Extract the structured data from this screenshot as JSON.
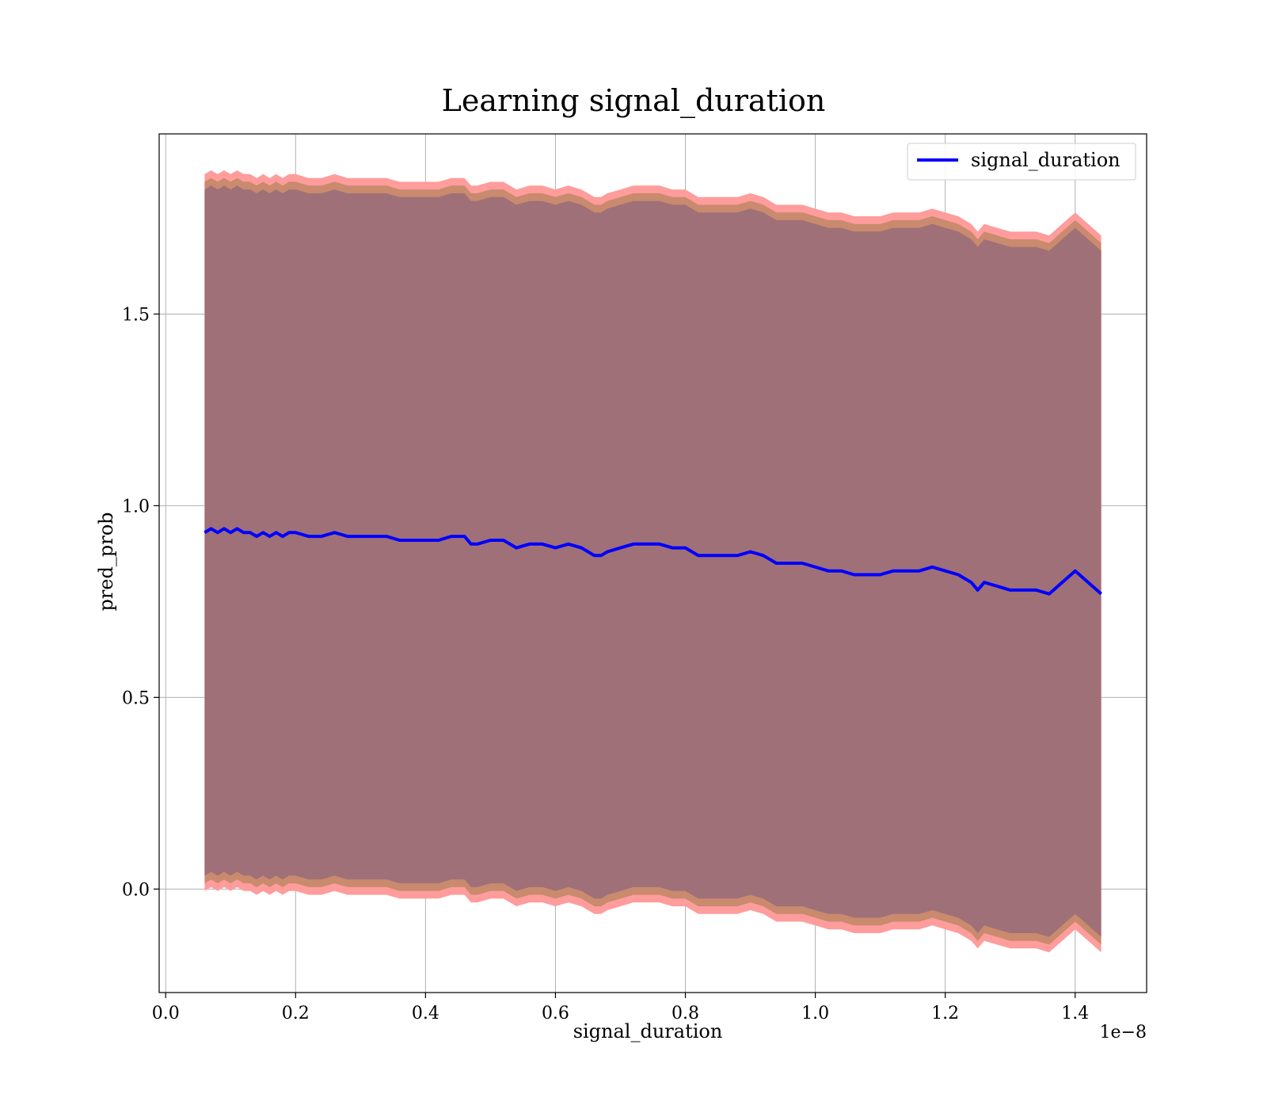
{
  "chart_data": {
    "type": "line",
    "title": "Learning signal_duration",
    "xlabel": "signal_duration",
    "ylabel": "pred_prob",
    "x_offset_text": "1e−8",
    "xlim": [
      -0.01,
      1.51
    ],
    "ylim": [
      -0.27,
      1.97
    ],
    "x_ticks": [
      0.0,
      0.2,
      0.4,
      0.6,
      0.8,
      1.0,
      1.2,
      1.4
    ],
    "x_tick_labels": [
      "0.0",
      "0.2",
      "0.4",
      "0.6",
      "0.8",
      "1.0",
      "1.2",
      "1.4"
    ],
    "y_ticks": [
      0.0,
      0.5,
      1.0,
      1.5
    ],
    "y_tick_labels": [
      "0.0",
      "0.5",
      "1.0",
      "1.5"
    ],
    "grid": true,
    "legend": {
      "position": "top-right",
      "entries": [
        "signal_duration"
      ]
    },
    "colors": {
      "line": "#0000ff",
      "band_outer": "#ff9c9c",
      "band_mid": "#c98a6e",
      "band_inner": "#a07078"
    },
    "series": [
      {
        "name": "signal_duration",
        "x": [
          0.06,
          0.07,
          0.08,
          0.09,
          0.1,
          0.11,
          0.12,
          0.13,
          0.14,
          0.15,
          0.16,
          0.17,
          0.18,
          0.19,
          0.2,
          0.22,
          0.24,
          0.26,
          0.28,
          0.3,
          0.32,
          0.34,
          0.36,
          0.38,
          0.4,
          0.42,
          0.44,
          0.46,
          0.47,
          0.48,
          0.5,
          0.52,
          0.54,
          0.56,
          0.58,
          0.6,
          0.62,
          0.64,
          0.66,
          0.67,
          0.68,
          0.7,
          0.72,
          0.74,
          0.76,
          0.78,
          0.8,
          0.82,
          0.84,
          0.86,
          0.88,
          0.9,
          0.92,
          0.94,
          0.96,
          0.98,
          1.0,
          1.02,
          1.04,
          1.06,
          1.08,
          1.1,
          1.12,
          1.14,
          1.16,
          1.18,
          1.2,
          1.22,
          1.24,
          1.25,
          1.26,
          1.28,
          1.3,
          1.34,
          1.36,
          1.4,
          1.44
        ],
        "y": [
          0.93,
          0.94,
          0.93,
          0.94,
          0.93,
          0.94,
          0.93,
          0.93,
          0.92,
          0.93,
          0.92,
          0.93,
          0.92,
          0.93,
          0.93,
          0.92,
          0.92,
          0.93,
          0.92,
          0.92,
          0.92,
          0.92,
          0.91,
          0.91,
          0.91,
          0.91,
          0.92,
          0.92,
          0.9,
          0.9,
          0.91,
          0.91,
          0.89,
          0.9,
          0.9,
          0.89,
          0.9,
          0.89,
          0.87,
          0.87,
          0.88,
          0.89,
          0.9,
          0.9,
          0.9,
          0.89,
          0.89,
          0.87,
          0.87,
          0.87,
          0.87,
          0.88,
          0.87,
          0.85,
          0.85,
          0.85,
          0.84,
          0.83,
          0.83,
          0.82,
          0.82,
          0.82,
          0.83,
          0.83,
          0.83,
          0.84,
          0.83,
          0.82,
          0.8,
          0.78,
          0.8,
          0.79,
          0.78,
          0.78,
          0.77,
          0.83,
          0.77
        ]
      }
    ],
    "bands": [
      {
        "name": "band_outer",
        "half_width": 0.935
      },
      {
        "name": "band_mid",
        "half_width": 0.915
      },
      {
        "name": "band_inner",
        "half_width": 0.895
      }
    ]
  }
}
